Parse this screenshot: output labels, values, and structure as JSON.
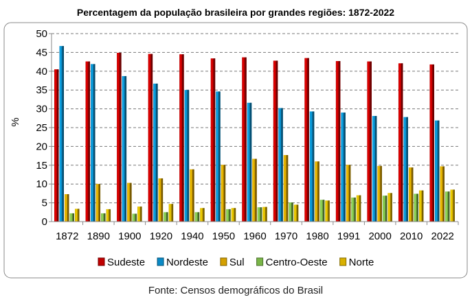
{
  "chart_data": {
    "type": "bar",
    "title": "Percentagem da população brasileira por grandes regiões: 1872-2022",
    "ylabel": "%",
    "xlabel": "",
    "ylim": [
      0,
      50
    ],
    "yticks": [
      0,
      5,
      10,
      15,
      20,
      25,
      30,
      35,
      40,
      45,
      50
    ],
    "grid": true,
    "legend_position": "bottom",
    "categories": [
      "1872",
      "1890",
      "1900",
      "1920",
      "1940",
      "1950",
      "1960",
      "1970",
      "1980",
      "1991",
      "2000",
      "2010",
      "2022"
    ],
    "series": [
      {
        "name": "Sudeste",
        "color": "#c00000",
        "values": [
          40.5,
          42.6,
          44.9,
          44.6,
          44.5,
          43.4,
          43.7,
          42.8,
          43.5,
          42.7,
          42.6,
          42.1,
          41.8
        ]
      },
      {
        "name": "Nordeste",
        "color": "#0a8ac6",
        "values": [
          46.7,
          41.9,
          38.7,
          36.7,
          35.0,
          34.6,
          31.6,
          30.2,
          29.3,
          29.0,
          28.1,
          27.8,
          26.9
        ]
      },
      {
        "name": "Sul",
        "color": "#d4a000",
        "values": [
          7.3,
          10.0,
          10.3,
          11.5,
          13.9,
          15.1,
          16.7,
          17.7,
          16.0,
          15.1,
          14.8,
          14.4,
          14.7
        ]
      },
      {
        "name": "Centro-Oeste",
        "color": "#7ab648",
        "values": [
          2.2,
          2.2,
          2.1,
          2.5,
          2.5,
          3.3,
          3.8,
          5.1,
          5.8,
          6.4,
          6.9,
          7.4,
          8.0
        ]
      },
      {
        "name": "Norte",
        "color": "#d8b000",
        "values": [
          3.4,
          3.3,
          4.0,
          4.7,
          3.6,
          3.6,
          3.9,
          4.5,
          5.6,
          7.0,
          7.6,
          8.3,
          8.5
        ]
      }
    ],
    "source": "Fonte: Censos demográficos do Brasil"
  }
}
